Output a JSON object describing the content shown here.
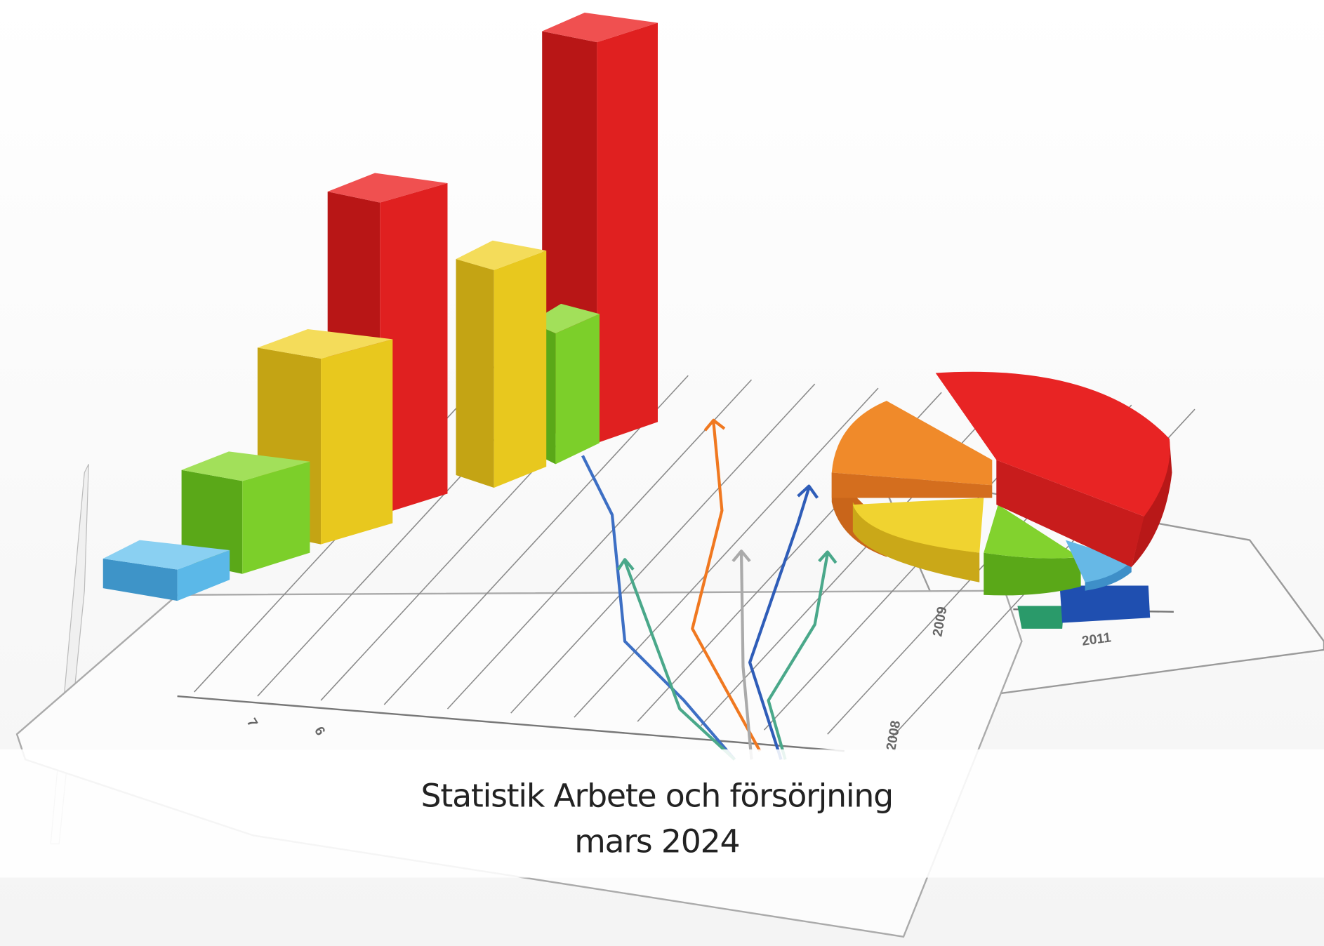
{
  "title": "Statistik Arbete och försörjning",
  "subtitle": "mars 2024",
  "illustration": {
    "axis_labels": [
      "7",
      "6",
      "2008",
      "2009",
      "2011"
    ]
  }
}
